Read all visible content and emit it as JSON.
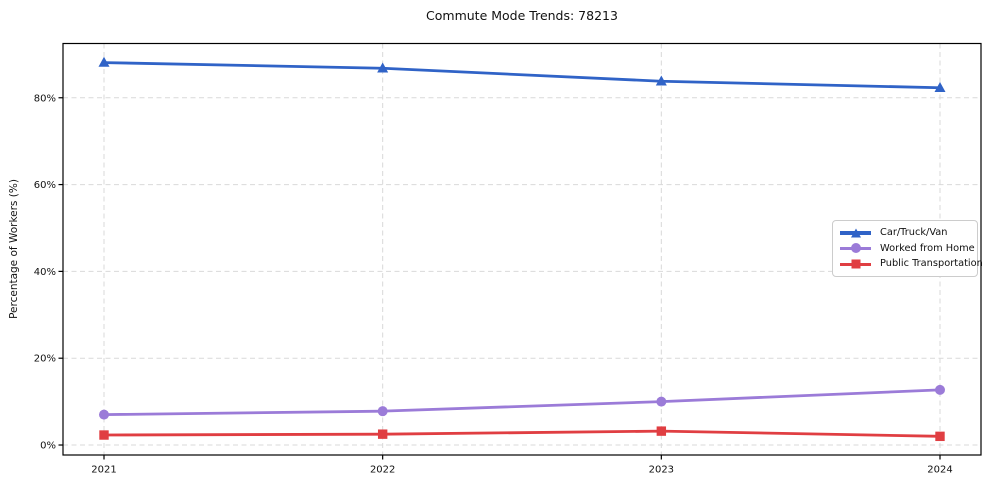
{
  "chart_data": {
    "type": "line",
    "title": "Commute Mode Trends: 78213",
    "xlabel": "",
    "ylabel": "Percentage of Workers (%)",
    "x": [
      2021,
      2022,
      2023,
      2024
    ],
    "x_tick_labels": [
      "2021",
      "2022",
      "2023",
      "2024"
    ],
    "y_ticks": [
      {
        "value": 0,
        "label": "0%"
      },
      {
        "value": 20,
        "label": "20%"
      },
      {
        "value": 40,
        "label": "40%"
      },
      {
        "value": 60,
        "label": "60%"
      },
      {
        "value": 80,
        "label": "80%"
      }
    ],
    "ylim": [
      -2.3,
      92.5
    ],
    "grid": true,
    "grid_style": "dashed",
    "legend_position": "center right",
    "series": [
      {
        "name": "Car/Truck/Van",
        "marker": "triangle",
        "color": "#3063c7",
        "values": [
          88.1,
          86.8,
          83.8,
          82.3
        ]
      },
      {
        "name": "Worked from Home",
        "marker": "circle",
        "color": "#9b7bd8",
        "values": [
          7.0,
          7.8,
          10.0,
          12.7
        ]
      },
      {
        "name": "Public Transportation",
        "marker": "square",
        "color": "#e03e42",
        "values": [
          2.3,
          2.5,
          3.2,
          2.0
        ]
      }
    ],
    "colors": {
      "gridline": "#d9d9d9",
      "spine": "#000000",
      "tick_label": "#111111",
      "background": "#ffffff"
    }
  }
}
